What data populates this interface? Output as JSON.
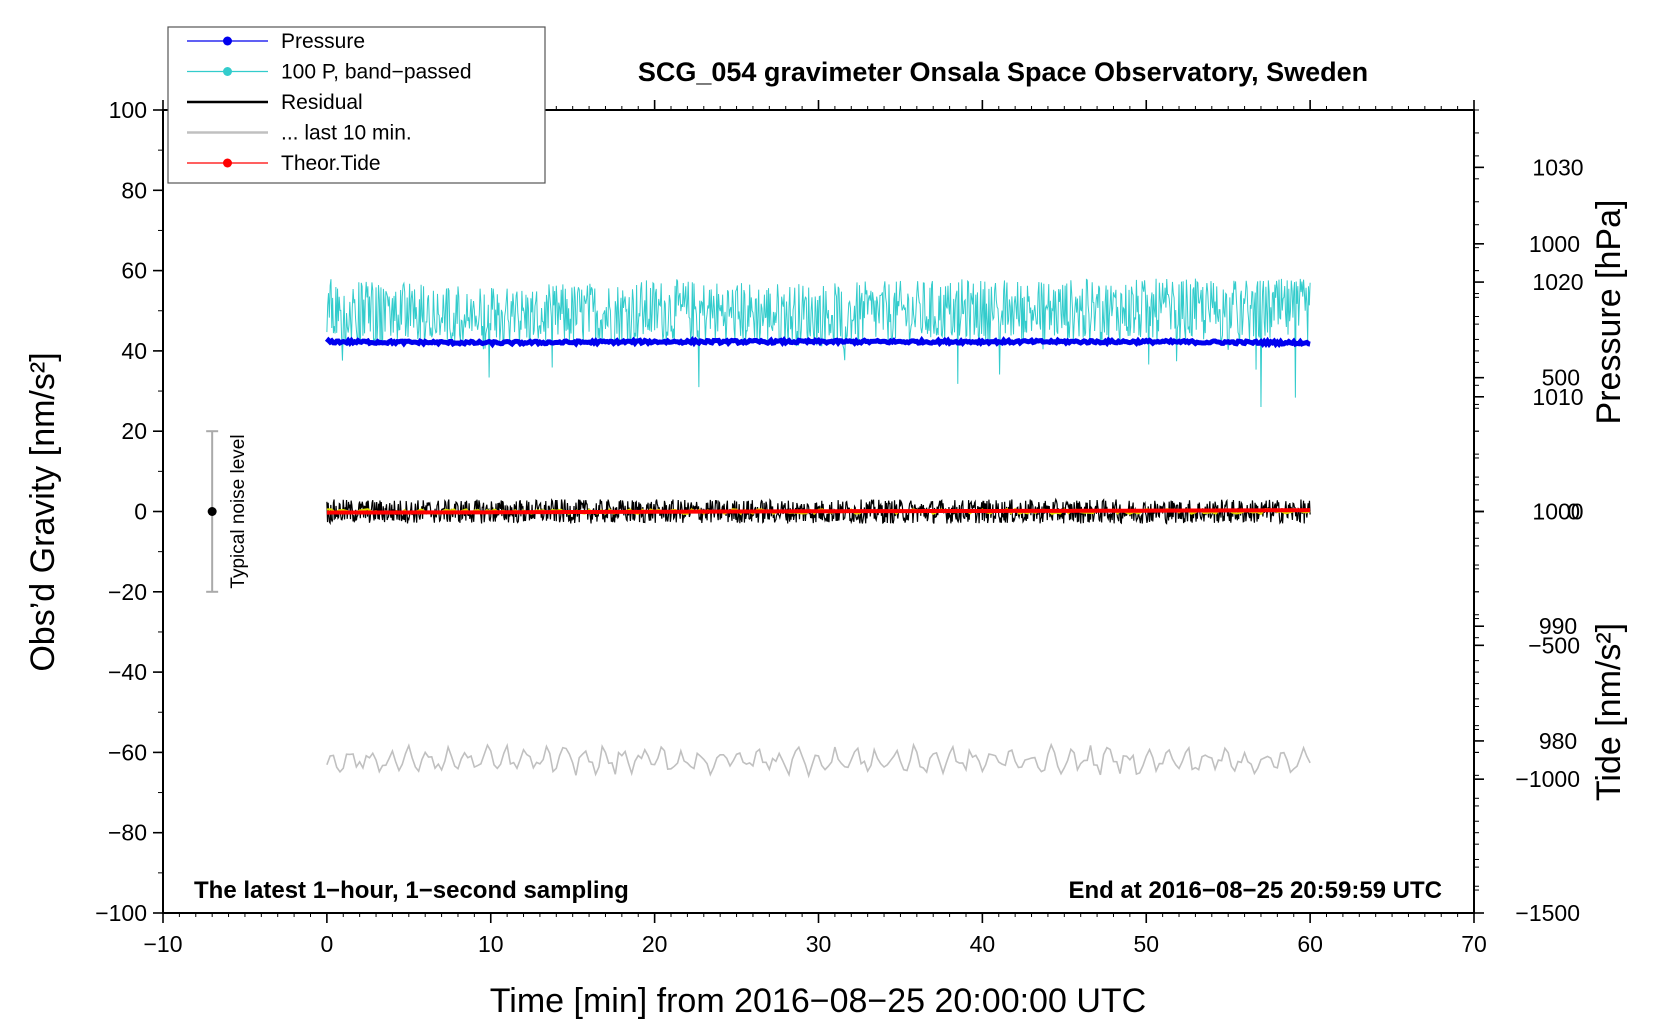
{
  "chart_data": {
    "type": "line",
    "title": "SCG_054 gravimeter Onsala Space Observatory, Sweden",
    "xlabel": "Time [min] from 2016−08−25 20:00:00 UTC",
    "ylabel_left": "Obs’d Gravity [nm/s²]",
    "ylabel_right_top": "Pressure [hPa]",
    "ylabel_right_bottom": "Tide [nm/s²]",
    "xlim": [
      -10,
      70
    ],
    "ylim": [
      -100,
      100
    ],
    "pressure_axis_range": [
      965,
      1035
    ],
    "tide_axis_range": [
      -1500,
      1500
    ],
    "x_ticks": [
      "−10",
      "0",
      "10",
      "20",
      "30",
      "40",
      "50",
      "60",
      "70"
    ],
    "y_ticks": [
      "−100",
      "−80",
      "−60",
      "−40",
      "−20",
      "0",
      "20",
      "40",
      "60",
      "80",
      "100"
    ],
    "pressure_ticks": [
      "980",
      "990",
      "1000",
      "1010",
      "1020",
      "1030"
    ],
    "tide_ticks": [
      "−1500",
      "−1000",
      "−500",
      "0",
      "500",
      "1000"
    ],
    "grid": false,
    "legend_position": "top-left",
    "series": [
      {
        "name": "Pressure",
        "color": "#0000ee",
        "marker": "dot",
        "axis": "pressure",
        "x": [
          0,
          10,
          20,
          30,
          40,
          50,
          60
        ],
        "values": [
          1014.8,
          1014.7,
          1014.8,
          1014.8,
          1014.8,
          1014.8,
          1014.7
        ]
      },
      {
        "name": "100 P, band−passed",
        "color": "#33cccc",
        "marker": "dot",
        "axis": "gravity",
        "x": [
          0,
          10,
          20,
          30,
          40,
          50,
          60
        ],
        "values": [
          50,
          48,
          50,
          49,
          50,
          50,
          50
        ]
      },
      {
        "name": "Residual",
        "color": "#000000",
        "marker": "none",
        "axis": "gravity",
        "x": [
          0,
          10,
          20,
          30,
          40,
          50,
          60
        ],
        "values": [
          0,
          0,
          0,
          0,
          0,
          0,
          0
        ]
      },
      {
        "name": "... last 10 min.",
        "color": "#c0c0c0",
        "marker": "none",
        "axis": "gravity",
        "x": [
          0,
          10,
          20,
          30,
          40,
          50,
          60
        ],
        "values": [
          -62,
          -62,
          -62,
          -62,
          -62,
          -62,
          -62
        ]
      },
      {
        "name": "Theor.Tide",
        "color": "#ff0000",
        "marker": "dot",
        "axis": "tide",
        "x": [
          0,
          10,
          20,
          30,
          40,
          50,
          60
        ],
        "values": [
          -4,
          -3,
          -1,
          1,
          2,
          3,
          5
        ]
      }
    ],
    "noise_bar": {
      "label": "Typical noise level",
      "x": -7,
      "center": 0,
      "half_range": 20
    },
    "annotation_left": "The latest 1−hour, 1−second sampling",
    "annotation_right": "End at 2016−08−25 20:59:59 UTC",
    "colors": {
      "residual_smoothed": "#dddd00"
    }
  }
}
